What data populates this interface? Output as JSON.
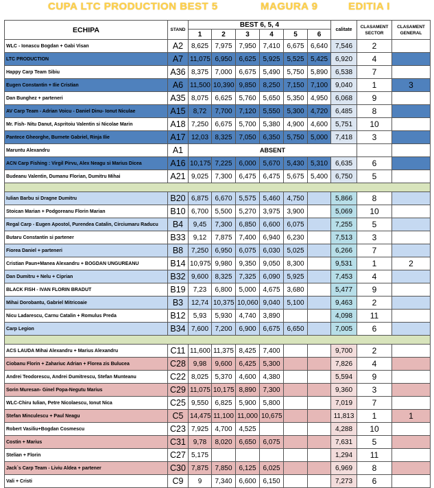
{
  "header": {
    "title": "CUPA  LTC  PRODUCTION  BEST 5",
    "location": "MAGURA 9",
    "edition": "EDITIA  I"
  },
  "columns": {
    "echipa": "ECHIPA",
    "stand": "STAND",
    "best": "BEST  6, 5, 4",
    "manche": [
      "1",
      "2",
      "3",
      "4",
      "5",
      "6"
    ],
    "calitate": "calitate",
    "clasament_sector": "CLASAMENT SECTOR",
    "clasament_general": "CLASAMENT GENERAL"
  },
  "sectors": [
    {
      "rows": [
        {
          "team": "WLC - Ionascu Bogdan + Gabi Visan",
          "stand": "A2",
          "v": [
            "8,625",
            "7,975",
            "7,950",
            "7,410",
            "6,675",
            "6,640"
          ],
          "cal": "7,546",
          "cs": "2",
          "cg": "",
          "style": "white"
        },
        {
          "team": "LTC PRODUCTION",
          "stand": "A7",
          "v": [
            "11,075",
            "6,950",
            "6,625",
            "5,925",
            "5,525",
            "5,425"
          ],
          "cal": "6,920",
          "cs": "4",
          "cg": "",
          "style": "blue"
        },
        {
          "team": "Happy Carp Team Sibiu",
          "stand": "A36",
          "v": [
            "8,375",
            "7,000",
            "6,675",
            "5,490",
            "5,750",
            "5,890"
          ],
          "cal": "6,538",
          "cs": "7",
          "cg": "",
          "style": "white"
        },
        {
          "team": "Eugen Constantin + Ilie Cristian",
          "stand": "A6",
          "v": [
            "11,500",
            "10,390",
            "9,850",
            "8,250",
            "7,150",
            "7,100"
          ],
          "cal": "9,040",
          "cs": "1",
          "cg": "3",
          "style": "blue"
        },
        {
          "team": "Dan Bunghez + parteneri",
          "stand": "A35",
          "v": [
            "8,075",
            "6,625",
            "5,760",
            "5,650",
            "5,350",
            "4,950"
          ],
          "cal": "6,068",
          "cs": "9",
          "cg": "",
          "style": "white"
        },
        {
          "team": "AV Carp Team - Adrian Voicu - Daniel Dinu- Ionut Niculae",
          "stand": "A15",
          "v": [
            "8,72",
            "7,700",
            "7,120",
            "5,550",
            "5,300",
            "4,720"
          ],
          "cal": "6,485",
          "cs": "8",
          "cg": "",
          "style": "blue"
        },
        {
          "team": "Mr. Fish- Nitu Danut, Aspritoiu Valentin si Nicolae Marin",
          "stand": "A18",
          "v": [
            "7,250",
            "6,675",
            "5,700",
            "5,380",
            "4,900",
            "4,600"
          ],
          "cal": "5,751",
          "cs": "10",
          "cg": "",
          "style": "white"
        },
        {
          "team": "Pantece Gheorghe, Burnete Gabriel, Rinja Ilie",
          "stand": "A17",
          "v": [
            "12,03",
            "8,325",
            "7,050",
            "6,350",
            "5,750",
            "5,000"
          ],
          "cal": "7,418",
          "cs": "3",
          "cg": "",
          "style": "blue"
        },
        {
          "team": "Maruntu Alexandru",
          "stand": "A1",
          "absent": "ABSENT",
          "cs": "",
          "cg": "",
          "style": "white"
        },
        {
          "team": "ACN Carp Fishing : Virgil Pirvu, Alex Neagu si Marius Dicea",
          "stand": "A16",
          "v": [
            "10,175",
            "7,225",
            "6,000",
            "5,670",
            "5,430",
            "5,310"
          ],
          "cal": "6,635",
          "cs": "6",
          "cg": "",
          "style": "blue"
        },
        {
          "team": "Budeanu Valentin, Dumanu Florian, Dumitru Mihai",
          "stand": "A21",
          "v": [
            "9,025",
            "7,300",
            "6,475",
            "6,475",
            "5,675",
            "5,400"
          ],
          "cal": "6,750",
          "cs": "5",
          "cg": "",
          "style": "white"
        }
      ]
    },
    {
      "rows": [
        {
          "team": "Iulian Barbu si Dragne Dumitru",
          "stand": "B20",
          "v": [
            "6,875",
            "6,670",
            "5,575",
            "5,460",
            "4,750",
            ""
          ],
          "cal": "5,866",
          "cs": "8",
          "cg": "",
          "style": "lblue"
        },
        {
          "team": "Stoican Marian + Podgoreanu Florin Marian",
          "stand": "B10",
          "v": [
            "6,700",
            "5,500",
            "5,270",
            "3,975",
            "3,900",
            ""
          ],
          "cal": "5,069",
          "cs": "10",
          "cg": "",
          "style": "white"
        },
        {
          "team": "Regal Carp - Eugen Apostol, Purendea Catalin, Circiumaru Raducu",
          "stand": "B4",
          "v": [
            "9,45",
            "7,300",
            "6,850",
            "6,600",
            "6,075",
            ""
          ],
          "cal": "7,255",
          "cs": "5",
          "cg": "",
          "style": "lblue"
        },
        {
          "team": "Butaru Constantin si partener",
          "stand": "B33",
          "v": [
            "9,12",
            "7,875",
            "7,400",
            "6,940",
            "6,230",
            ""
          ],
          "cal": "7,513",
          "cs": "3",
          "cg": "",
          "style": "white"
        },
        {
          "team": "Fiorea Daniel + parteneri",
          "stand": "B8",
          "v": [
            "7,250",
            "6,950",
            "6,075",
            "6,030",
            "5,025",
            ""
          ],
          "cal": "6,266",
          "cs": "7",
          "cg": "",
          "style": "lblue"
        },
        {
          "team": "Cristian Paun+Manea Alexandru + BOGDAN UNGUREANU",
          "stand": "B14",
          "v": [
            "10,975",
            "9,980",
            "9,350",
            "9,050",
            "8,300",
            ""
          ],
          "cal": "9,531",
          "cs": "1",
          "cg": "2",
          "style": "white"
        },
        {
          "team": "Dan Dumitru + Nelu + Ciprian",
          "stand": "B32",
          "v": [
            "9,600",
            "8,325",
            "7,325",
            "6,090",
            "5,925",
            ""
          ],
          "cal": "7,453",
          "cs": "4",
          "cg": "",
          "style": "lblue"
        },
        {
          "team": "BLACK FISH - IVAN FLORIN BRADUT",
          "stand": "B19",
          "v": [
            "7,23",
            "6,800",
            "5,000",
            "4,675",
            "3,680",
            ""
          ],
          "cal": "5,477",
          "cs": "9",
          "cg": "",
          "style": "white"
        },
        {
          "team": "Mihai Dorobantu, Gabriel Mitricoaie",
          "stand": "B3",
          "v": [
            "12,74",
            "10,375",
            "10,060",
            "9,040",
            "5,100",
            ""
          ],
          "cal": "9,463",
          "cs": "2",
          "cg": "",
          "style": "lblue"
        },
        {
          "team": "Nicu Ladarescu, Carnu Catalin + Romulus Preda",
          "stand": "B12",
          "v": [
            "5,93",
            "5,930",
            "4,740",
            "3,890",
            "",
            ""
          ],
          "cal": "4,098",
          "cs": "11",
          "cg": "",
          "style": "white"
        },
        {
          "team": "Carp Legion",
          "stand": "B34",
          "v": [
            "7,600",
            "7,200",
            "6,900",
            "6,675",
            "6,650",
            ""
          ],
          "cal": "7,005",
          "cs": "6",
          "cg": "",
          "style": "lblue"
        }
      ]
    },
    {
      "rows": [
        {
          "team": "ACS LAUDA Mihai Alexandru + Marius Alexandru",
          "stand": "C11",
          "v": [
            "11,600",
            "11,375",
            "8,425",
            "7,400",
            "",
            ""
          ],
          "cal": "9,700",
          "cs": "2",
          "cg": "",
          "style": "white"
        },
        {
          "team": "Ciobanu Florin + Zahariuc Adrian + Florea zis Bulucea",
          "stand": "C28",
          "v": [
            "9,98",
            "9,600",
            "6,425",
            "5,300",
            "",
            ""
          ],
          "cal": "7,826",
          "cs": "4",
          "cg": "",
          "style": "pink"
        },
        {
          "team": "Andrei Teodorescu, Andrei Dumitrescu, Stefan Munteanu",
          "stand": "C22",
          "v": [
            "8,025",
            "5,370",
            "4,600",
            "4,380",
            "",
            ""
          ],
          "cal": "5,594",
          "cs": "9",
          "cg": "",
          "style": "white"
        },
        {
          "team": "Sorin Muresan- Ginel Popa-Negutu Marius",
          "stand": "C29",
          "v": [
            "11,075",
            "10,175",
            "8,890",
            "7,300",
            "",
            ""
          ],
          "cal": "9,360",
          "cs": "3",
          "cg": "",
          "style": "pink"
        },
        {
          "team": "WLC-Chiru Iulian, Petre Nicolaescu, Ionut Nica",
          "stand": "C25",
          "v": [
            "9,550",
            "6,825",
            "5,900",
            "5,800",
            "",
            ""
          ],
          "cal": "7,019",
          "cs": "7",
          "cg": "",
          "style": "white"
        },
        {
          "team": "Stefan Minculescu + Paul Neagu",
          "stand": "C5",
          "v": [
            "14,475",
            "11,100",
            "11,000",
            "10,675",
            "",
            ""
          ],
          "cal": "11,813",
          "cs": "1",
          "cg": "1",
          "style": "pink"
        },
        {
          "team": "Robert Vasiliu+Bogdan Cosmescu",
          "stand": "C23",
          "v": [
            "7,925",
            "4,700",
            "4,525",
            "",
            "",
            ""
          ],
          "cal": "4,288",
          "cs": "10",
          "cg": "",
          "style": "white"
        },
        {
          "team": "Costin + Marius",
          "stand": "C31",
          "v": [
            "9,78",
            "8,020",
            "6,650",
            "6,075",
            "",
            ""
          ],
          "cal": "7,631",
          "cs": "5",
          "cg": "",
          "style": "pink"
        },
        {
          "team": "Stelian + Florin",
          "stand": "C27",
          "v": [
            "5,175",
            "",
            "",
            "",
            "",
            ""
          ],
          "cal": "1,294",
          "cs": "11",
          "cg": "",
          "style": "white"
        },
        {
          "team": "Jack`s Carp Team - Liviu Aldea + partener",
          "stand": "C30",
          "v": [
            "7,875",
            "7,850",
            "6,125",
            "6,025",
            "",
            ""
          ],
          "cal": "6,969",
          "cs": "8",
          "cg": "",
          "style": "pink"
        },
        {
          "team": "Vali + Cristi",
          "stand": "C9",
          "v": [
            "9",
            "7,340",
            "6,600",
            "6,150",
            "",
            ""
          ],
          "cal": "7,273",
          "cs": "6",
          "cg": "",
          "style": "white"
        }
      ]
    }
  ]
}
